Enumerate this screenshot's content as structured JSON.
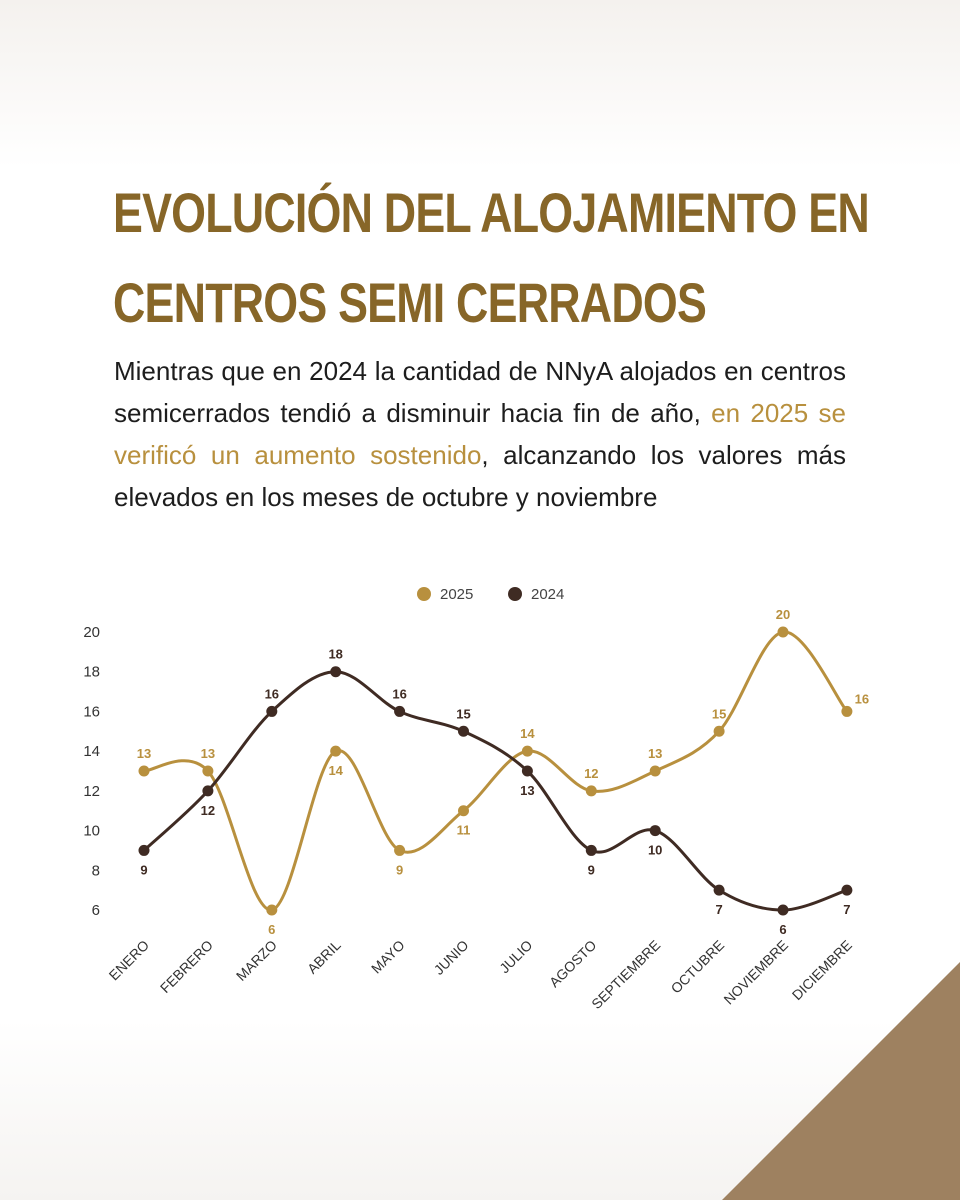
{
  "title": {
    "line1": "EVOLUCIÓN DEL ALOJAMIENTO EN",
    "line2": "CENTROS SEMI CERRADOS"
  },
  "paragraph": {
    "part1": "Mientras que en 2024 la cantidad de NNyA alojados en centros semicerrados tendió a disminuir hacia fin de año, ",
    "highlight": "en 2025 se verificó un aumento sostenido",
    "part2": ", alcanzando los valores más elevados en los meses de octubre y noviembre"
  },
  "colors": {
    "title": "#876628",
    "highlight": "#b8903e",
    "series_2025": "#b8903e",
    "series_2024": "#3f2b23",
    "corner": "#9e8160"
  },
  "chart_data": {
    "type": "line",
    "categories": [
      "ENERO",
      "FEBRERO",
      "MARZO",
      "ABRIL",
      "MAYO",
      "JUNIO",
      "JULIO",
      "AGOSTO",
      "SEPTIEMBRE",
      "OCTUBRE",
      "NOVIEMBRE",
      "DICIEMBRE"
    ],
    "series": [
      {
        "name": "2025",
        "color": "#b8903e",
        "values": [
          13,
          13,
          6,
          14,
          9,
          11,
          14,
          12,
          13,
          15,
          20,
          16
        ]
      },
      {
        "name": "2024",
        "color": "#3f2b23",
        "values": [
          9,
          12,
          16,
          18,
          16,
          15,
          13,
          9,
          10,
          7,
          6,
          7
        ]
      }
    ],
    "yticks": [
      20,
      18,
      16,
      14,
      12,
      10,
      8,
      6
    ],
    "ylim": [
      6,
      20
    ],
    "legend": "top-center",
    "grid": false,
    "smooth": true,
    "data_labels": true
  }
}
